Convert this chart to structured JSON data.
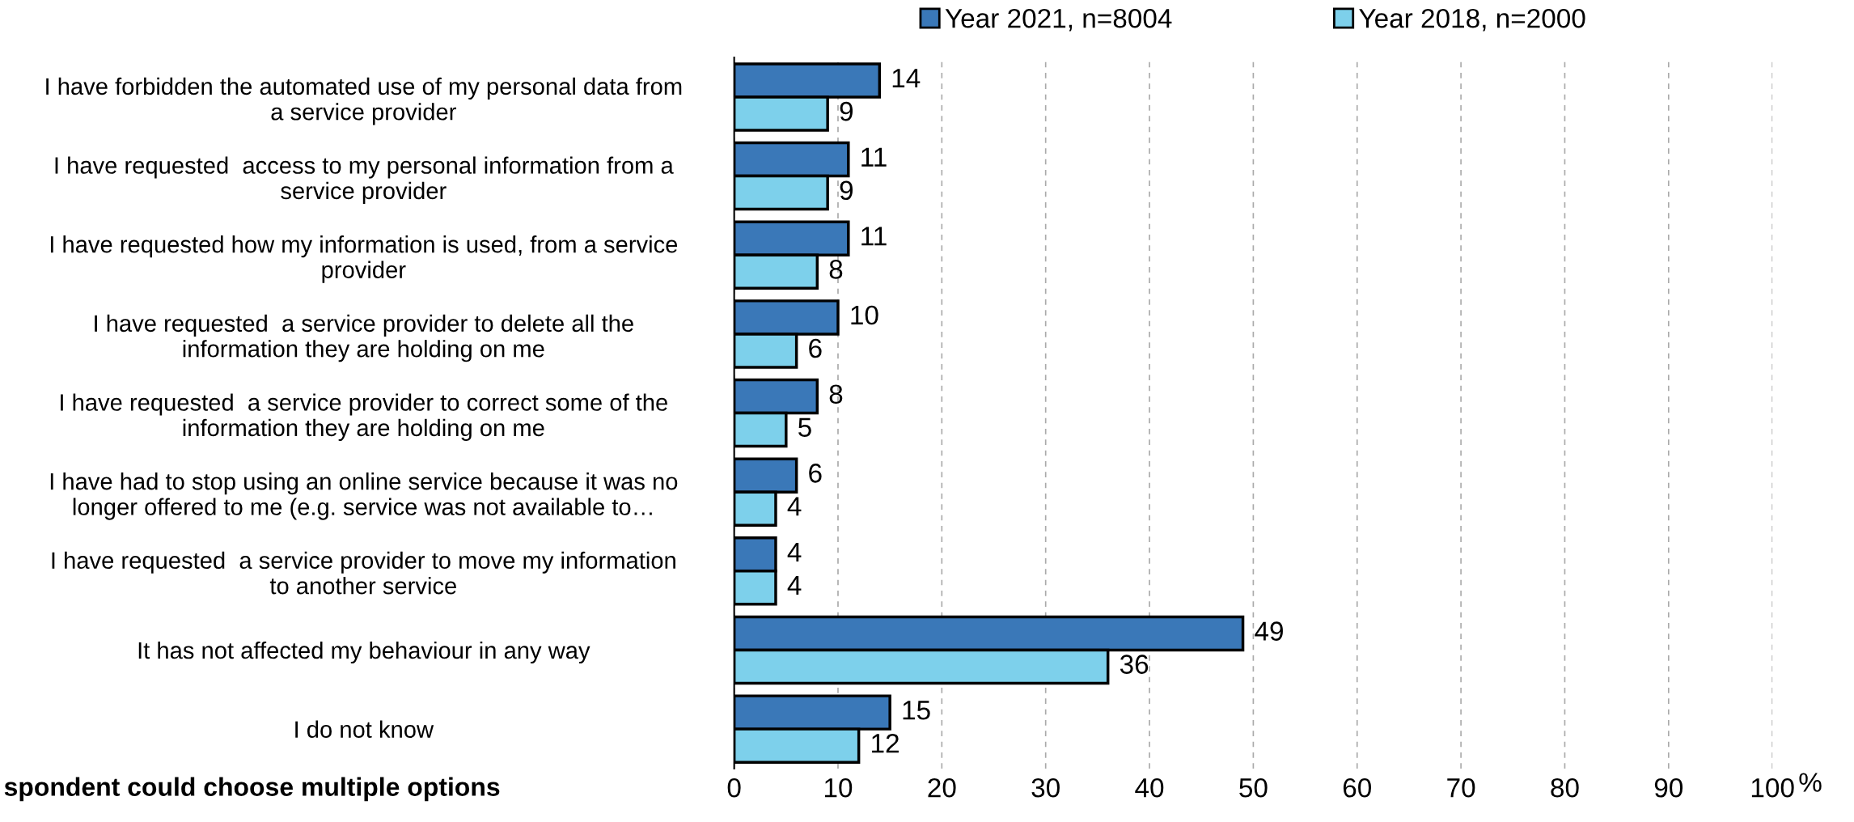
{
  "chart_data": {
    "type": "bar",
    "orientation": "horizontal",
    "categories": [
      "I have forbidden the automated use of my personal data from\na service provider",
      "I have requested  access to my personal information from a\nservice provider",
      "I have requested how my information is used, from a service\nprovider",
      "I have requested  a service provider to delete all the\ninformation they are holding on me",
      "I have requested  a service provider to correct some of the\ninformation they are holding on me",
      "I have had to stop using an online service because it was no\nlonger offered to me (e.g. service was not available to…",
      "I have requested  a service provider to move my information\nto another service",
      "It has not affected my behaviour in any way",
      "I do not know"
    ],
    "series": [
      {
        "name": "Year 2021, n=8004",
        "color": "#3a78b8",
        "values": [
          14,
          11,
          11,
          10,
          8,
          6,
          4,
          49,
          15
        ]
      },
      {
        "name": "Year 2018, n=2000",
        "color": "#7dd0eb",
        "values": [
          9,
          9,
          8,
          6,
          5,
          4,
          4,
          36,
          12
        ]
      }
    ],
    "xlim": [
      0,
      100
    ],
    "xticks": [
      0,
      10,
      20,
      30,
      40,
      50,
      60,
      70,
      80,
      90,
      100
    ],
    "xlabel": "%",
    "grid": "x",
    "legend": "top",
    "data_labels": true,
    "annotations": [
      "spondent could choose multiple options"
    ]
  }
}
